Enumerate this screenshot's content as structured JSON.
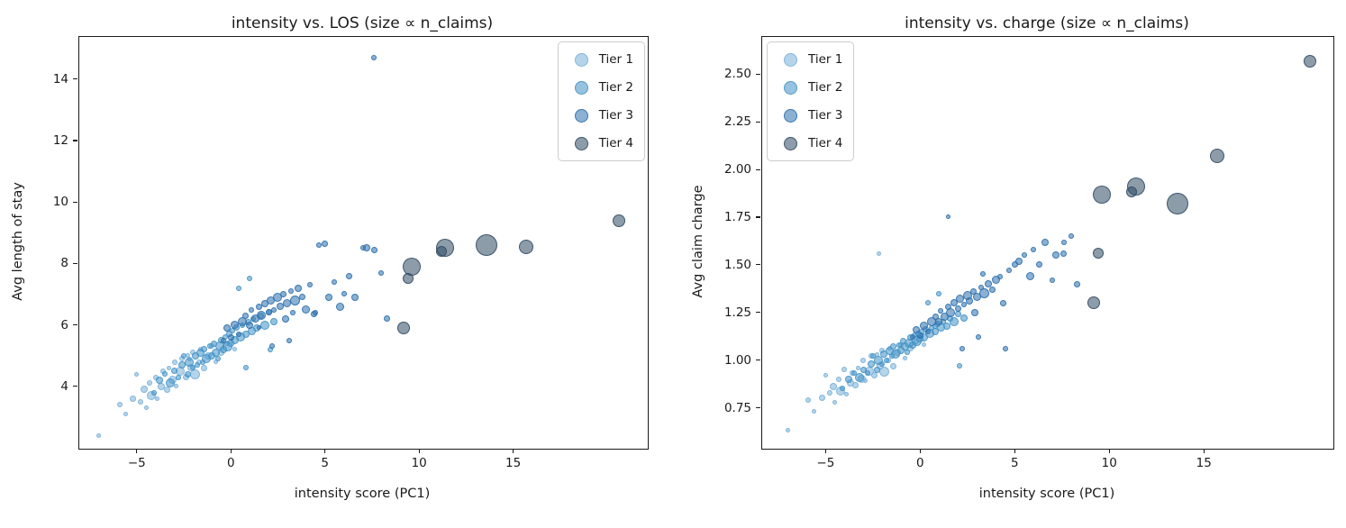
{
  "figure": {
    "background": "#ffffff",
    "text_color": "#1a1a1a"
  },
  "legend": {
    "labels": [
      "Tier 1",
      "Tier 2",
      "Tier 3",
      "Tier 4"
    ]
  },
  "chart_data": {
    "type": "scatter",
    "note": "Two-panel bubble scatter; same entities in both panels. Marker size proportional to n_claims.",
    "point_format": [
      "intensity_pc1",
      "avg_los",
      "avg_charge",
      "marker_radius_px"
    ],
    "panels": [
      {
        "title": "intensity vs. LOS (size ∝ n_claims)",
        "xlabel": "intensity score (PC1)",
        "ylabel": "Avg length of stay",
        "y_key": 1,
        "xlim": [
          -8.1,
          22.1
        ],
        "ylim": [
          2.0,
          15.4
        ],
        "xticks": [
          -5,
          0,
          5,
          10,
          15
        ],
        "xtick_labels": [
          "−5",
          "0",
          "5",
          "10",
          "15"
        ],
        "yticks": [
          4,
          6,
          8,
          10,
          12,
          14
        ],
        "ytick_labels": [
          "4",
          "6",
          "8",
          "10",
          "12",
          "14"
        ],
        "legend_position": "upper right",
        "grid": false
      },
      {
        "title": "intensity vs. charge (size ∝ n_claims)",
        "xlabel": "intensity score (PC1)",
        "ylabel": "Avg claim charge",
        "y_key": 2,
        "xlim": [
          -8.4,
          21.8
        ],
        "ylim": [
          0.54,
          2.7
        ],
        "xticks": [
          -5,
          0,
          5,
          10,
          15
        ],
        "xtick_labels": [
          "−5",
          "0",
          "5",
          "10",
          "15"
        ],
        "yticks": [
          0.75,
          1.0,
          1.25,
          1.5,
          1.75,
          2.0,
          2.25,
          2.5
        ],
        "ytick_labels": [
          "0.75",
          "1.00",
          "1.25",
          "1.50",
          "1.75",
          "2.00",
          "2.25",
          "2.50"
        ],
        "legend_position": "upper left",
        "grid": false
      }
    ],
    "series": [
      {
        "name": "Tier 1",
        "color": "#79b1d9",
        "points": [
          [
            -7.0,
            2.4,
            0.63,
            2.5
          ],
          [
            -5.9,
            3.4,
            0.79,
            3
          ],
          [
            -5.6,
            3.1,
            0.73,
            2.5
          ],
          [
            -5.2,
            3.6,
            0.8,
            3.5
          ],
          [
            -5.0,
            4.4,
            0.92,
            2.5
          ],
          [
            -4.8,
            3.5,
            0.83,
            3
          ],
          [
            -4.6,
            3.9,
            0.86,
            4
          ],
          [
            -4.5,
            3.3,
            0.78,
            2.5
          ],
          [
            -4.3,
            4.1,
            0.9,
            3
          ],
          [
            -4.2,
            3.7,
            0.84,
            5
          ],
          [
            -4.0,
            4.3,
            0.95,
            3
          ],
          [
            -3.9,
            3.6,
            0.82,
            2.5
          ],
          [
            -3.7,
            4.0,
            0.88,
            4
          ],
          [
            -3.6,
            4.5,
            0.93,
            3
          ],
          [
            -3.4,
            3.9,
            0.87,
            3.5
          ],
          [
            -3.3,
            4.6,
            0.96,
            2.5
          ],
          [
            -3.1,
            4.2,
            0.9,
            4.5
          ],
          [
            -3.0,
            4.8,
            1.0,
            3
          ],
          [
            -2.9,
            4.0,
            0.89,
            2.5
          ],
          [
            -2.7,
            4.5,
            0.94,
            5
          ],
          [
            -2.6,
            4.9,
            1.02,
            3
          ],
          [
            -2.4,
            4.3,
            0.92,
            3.5
          ],
          [
            -2.3,
            5.0,
            1.03,
            2.5
          ],
          [
            -2.2,
            4.9,
            1.56,
            2.5
          ],
          [
            -2.1,
            4.6,
            0.97,
            4
          ],
          [
            -2.0,
            5.1,
            1.05,
            3
          ],
          [
            -1.9,
            4.4,
            0.94,
            5.5
          ],
          [
            -1.7,
            4.8,
            1.0,
            3
          ],
          [
            -1.6,
            5.2,
            1.06,
            2.5
          ],
          [
            -1.4,
            4.6,
            0.97,
            3.5
          ],
          [
            -1.2,
            5.0,
            1.04,
            4
          ],
          [
            -1.0,
            5.3,
            1.08,
            3
          ],
          [
            -0.8,
            4.8,
            1.01,
            2.5
          ],
          [
            -0.5,
            5.1,
            1.06,
            3.5
          ],
          [
            -0.2,
            5.4,
            1.1,
            3
          ],
          [
            0.2,
            5.2,
            1.08,
            2.5
          ]
        ]
      },
      {
        "name": "Tier 2",
        "color": "#4292c6",
        "points": [
          [
            -4.1,
            3.8,
            0.85,
            3
          ],
          [
            -3.8,
            4.2,
            0.9,
            4
          ],
          [
            -3.5,
            4.4,
            0.93,
            3
          ],
          [
            -3.2,
            4.1,
            0.91,
            5
          ],
          [
            -3.0,
            4.5,
            0.95,
            3.5
          ],
          [
            -2.8,
            4.3,
            0.93,
            3
          ],
          [
            -2.6,
            4.7,
            0.98,
            4
          ],
          [
            -2.5,
            5.0,
            1.02,
            3
          ],
          [
            -2.3,
            4.4,
            0.95,
            3.5
          ],
          [
            -2.2,
            4.8,
            1.0,
            5
          ],
          [
            -2.0,
            4.6,
            0.98,
            3
          ],
          [
            -1.9,
            5.0,
            1.03,
            4
          ],
          [
            -1.8,
            4.7,
            1.0,
            3
          ],
          [
            -1.6,
            5.1,
            1.05,
            4.5
          ],
          [
            -1.5,
            4.8,
            1.02,
            3
          ],
          [
            -1.4,
            5.2,
            1.07,
            3.5
          ],
          [
            -1.3,
            4.9,
            1.03,
            5
          ],
          [
            -1.1,
            5.3,
            1.08,
            3
          ],
          [
            -1.0,
            5.0,
            1.05,
            4
          ],
          [
            -0.9,
            5.4,
            1.1,
            3.5
          ],
          [
            -0.8,
            5.1,
            1.07,
            4.5
          ],
          [
            -0.7,
            4.9,
            1.04,
            3
          ],
          [
            -0.6,
            5.3,
            1.09,
            5
          ],
          [
            -0.5,
            5.5,
            1.12,
            3.5
          ],
          [
            -0.4,
            5.2,
            1.08,
            4
          ],
          [
            -0.3,
            5.6,
            1.13,
            3
          ],
          [
            -0.2,
            5.3,
            1.1,
            5.5
          ],
          [
            -0.1,
            5.7,
            1.14,
            3.5
          ],
          [
            0.0,
            5.4,
            1.11,
            4
          ],
          [
            0.1,
            5.8,
            1.15,
            3
          ],
          [
            0.2,
            5.5,
            1.12,
            4.5
          ],
          [
            0.3,
            5.9,
            1.16,
            3.5
          ],
          [
            0.5,
            5.6,
            1.14,
            5
          ],
          [
            0.6,
            6.0,
            1.17,
            3
          ],
          [
            0.8,
            5.7,
            1.15,
            4
          ],
          [
            0.9,
            6.1,
            1.19,
            3.5
          ],
          [
            1.1,
            5.8,
            1.17,
            4.5
          ],
          [
            1.2,
            6.2,
            1.2,
            3
          ],
          [
            1.4,
            5.9,
            1.18,
            4
          ],
          [
            1.6,
            6.3,
            1.22,
            3.5
          ],
          [
            1.8,
            6.0,
            1.2,
            5
          ],
          [
            2.0,
            6.4,
            1.24,
            3.5
          ],
          [
            2.3,
            6.1,
            1.22,
            4
          ],
          [
            0.4,
            7.2,
            1.3,
            3
          ],
          [
            1.0,
            7.5,
            1.35,
            3
          ],
          [
            0.8,
            4.6,
            1.18,
            3
          ],
          [
            2.1,
            5.2,
            0.97,
            3
          ]
        ]
      },
      {
        "name": "Tier 3",
        "color": "#2c6fad",
        "points": [
          [
            -0.4,
            5.5,
            1.12,
            3
          ],
          [
            -0.2,
            5.9,
            1.16,
            4
          ],
          [
            0.0,
            5.6,
            1.13,
            3.5
          ],
          [
            0.2,
            6.0,
            1.18,
            4.5
          ],
          [
            0.4,
            5.7,
            1.15,
            3
          ],
          [
            0.6,
            6.1,
            1.2,
            5
          ],
          [
            0.8,
            6.3,
            1.23,
            3.5
          ],
          [
            1.0,
            6.0,
            1.2,
            4
          ],
          [
            1.1,
            6.5,
            1.26,
            3
          ],
          [
            1.3,
            6.2,
            1.23,
            4.5
          ],
          [
            1.5,
            6.6,
            1.28,
            3.5
          ],
          [
            1.5,
            5.9,
            1.75,
            2.5
          ],
          [
            1.6,
            6.3,
            1.25,
            5
          ],
          [
            1.8,
            6.7,
            1.3,
            4
          ],
          [
            2.0,
            6.4,
            1.27,
            3.5
          ],
          [
            2.1,
            6.8,
            1.32,
            4.5
          ],
          [
            2.2,
            5.3,
            1.06,
            3
          ],
          [
            2.3,
            6.5,
            1.29,
            3
          ],
          [
            2.5,
            6.9,
            1.34,
            5
          ],
          [
            2.6,
            6.6,
            1.31,
            4
          ],
          [
            2.8,
            7.0,
            1.36,
            3.5
          ],
          [
            2.9,
            6.2,
            1.25,
            4
          ],
          [
            3.0,
            6.7,
            1.33,
            4.5
          ],
          [
            3.1,
            5.5,
            1.12,
            3
          ],
          [
            3.2,
            7.1,
            1.38,
            3
          ],
          [
            3.3,
            6.4,
            1.45,
            3
          ],
          [
            3.4,
            6.8,
            1.35,
            5.5
          ],
          [
            3.6,
            7.2,
            1.4,
            4
          ],
          [
            3.8,
            6.9,
            1.37,
            3.5
          ],
          [
            4.0,
            6.5,
            1.42,
            4.5
          ],
          [
            4.2,
            7.3,
            1.44,
            3
          ],
          [
            4.4,
            6.35,
            1.3,
            3.5
          ],
          [
            4.5,
            6.4,
            1.06,
            3
          ],
          [
            4.7,
            8.6,
            1.47,
            3
          ],
          [
            5.0,
            8.65,
            1.5,
            3.5
          ],
          [
            5.2,
            6.9,
            1.52,
            4
          ],
          [
            5.5,
            7.4,
            1.55,
            3
          ],
          [
            5.8,
            6.6,
            1.44,
            4.5
          ],
          [
            6.0,
            7.0,
            1.58,
            3
          ],
          [
            6.3,
            7.6,
            1.5,
            3.5
          ],
          [
            6.6,
            6.9,
            1.62,
            4
          ],
          [
            7.0,
            8.5,
            1.42,
            3
          ],
          [
            7.2,
            8.5,
            1.55,
            4
          ],
          [
            7.6,
            8.45,
            1.56,
            3.5
          ],
          [
            7.6,
            14.7,
            1.62,
            3
          ],
          [
            8.0,
            7.7,
            1.65,
            3
          ],
          [
            8.3,
            6.2,
            1.4,
            3.5
          ]
        ]
      },
      {
        "name": "Tier 4",
        "color": "#2f4a63",
        "points": [
          [
            9.2,
            5.9,
            1.3,
            7
          ],
          [
            9.4,
            7.5,
            1.56,
            6
          ],
          [
            9.6,
            7.9,
            1.87,
            10
          ],
          [
            11.2,
            8.4,
            1.88,
            6
          ],
          [
            11.4,
            8.5,
            1.91,
            10
          ],
          [
            13.6,
            8.6,
            1.82,
            12
          ],
          [
            15.7,
            8.55,
            2.07,
            8
          ],
          [
            20.6,
            9.4,
            2.57,
            7
          ]
        ]
      }
    ]
  }
}
